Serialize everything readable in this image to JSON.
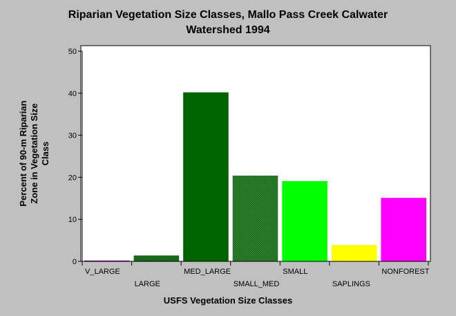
{
  "chart_data": {
    "type": "bar",
    "title_lines": [
      "Riparian Vegetation Size Classes, Mallo Pass Creek Calwater",
      "Watershed 1994"
    ],
    "xlabel": "USFS Vegetation Size Classes",
    "ylabel_lines": [
      "Percent of 90-m Riparian",
      "Zone in Vegetation Size",
      "Class"
    ],
    "categories": [
      "V_LARGE",
      "LARGE",
      "MED_LARGE",
      "SMALL_MED",
      "SMALL",
      "SAPLINGS",
      "NONFOREST"
    ],
    "values": [
      0.2,
      1.4,
      40.2,
      20.4,
      19.1,
      3.9,
      15.1
    ],
    "colors": [
      "#800080",
      "#1e7b1e",
      "#006400",
      "#2e8b2e",
      "#00ff00",
      "#ffff00",
      "#ff00ff"
    ],
    "hatched": [
      false,
      true,
      false,
      true,
      false,
      false,
      false
    ],
    "ylim": [
      0,
      50
    ],
    "yticks": [
      0,
      10,
      20,
      30,
      40,
      50
    ],
    "grid": false,
    "legend": "none"
  }
}
